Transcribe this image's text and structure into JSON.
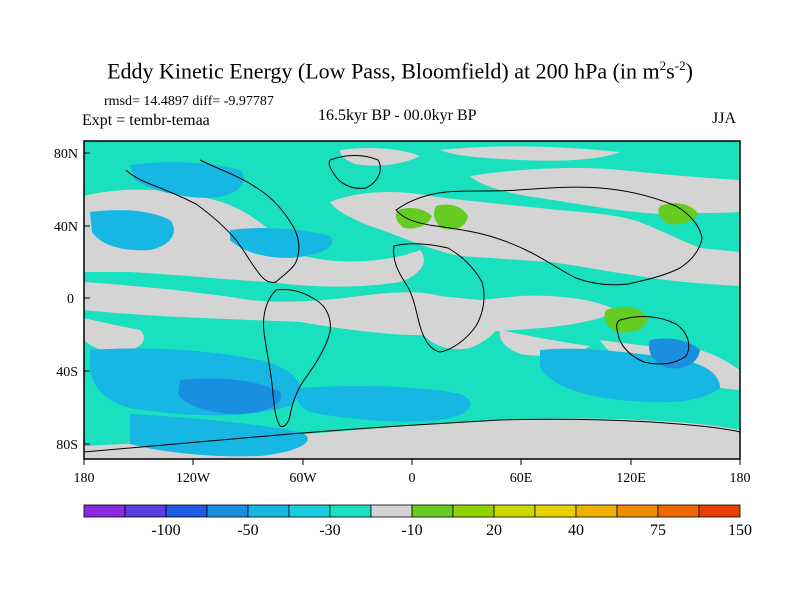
{
  "header": {
    "title": "Eddy Kinetic Energy (Low Pass, Bloomfield) at 200 hPa (in m",
    "title_sup1": "2",
    "title_mid": "s",
    "title_sup2": "-2",
    "title_end": ")",
    "stats": "rmsd= 14.4897 diff= -9.97787",
    "experiment": "Expt = tembr-temaa",
    "period": "16.5kyr BP - 00.0kyr BP",
    "season": "JJA"
  },
  "map": {
    "lat_labels": [
      "80N",
      "40N",
      "0",
      "40S",
      "80S"
    ],
    "lon_labels": [
      "180",
      "120W",
      "60W",
      "0",
      "60E",
      "120E",
      "180"
    ],
    "colors": {
      "strong_neg": "#1a8fe0",
      "mid_neg": "#16b7e3",
      "weak_neg": "#19e0be",
      "neutral": "#d4d4d4",
      "pos": "#66cc22",
      "coast": "#000000"
    }
  },
  "colorbar": {
    "tick_labels": [
      "-100",
      "-50",
      "-30",
      "-10",
      "20",
      "40",
      "75",
      "150"
    ],
    "colors": [
      "#8a2be2",
      "#5b3fe0",
      "#1e5ce8",
      "#1a8fe0",
      "#16b7e3",
      "#17cfe0",
      "#19e0be",
      "#d4d4d4",
      "#66cc22",
      "#8fd400",
      "#c8d800",
      "#e6d200",
      "#f0b000",
      "#f08c00",
      "#ee6a00",
      "#e84000"
    ]
  }
}
